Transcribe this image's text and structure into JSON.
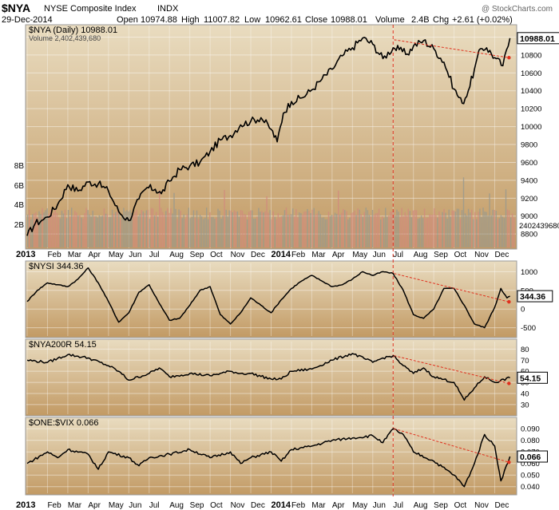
{
  "header": {
    "symbol": "$NYA",
    "name": "NYSE Composite Index",
    "exchange": "INDX",
    "date": "29-Dec-2014",
    "open_label": "Open",
    "open": "10974.88",
    "high_label": "High",
    "high": "11007.82",
    "low_label": "Low",
    "low": "10962.61",
    "close_label": "Close",
    "close": "10988.01",
    "volume_label": "Volume",
    "volume": "2.4B",
    "chg_label": "Chg",
    "chg": "+2.61 (+0.02%)",
    "watermark": "@ StockCharts.com"
  },
  "colors": {
    "panel_top": "#e9dcc0",
    "panel_bottom": "#c29a64",
    "line": "#000000",
    "dashed": "#e0301e",
    "vol_up": "#9a9a8e",
    "vol_down": "#d18b7e"
  },
  "chart_data": [
    {
      "type": "line",
      "title": "$NYA (Daily) 10988.01",
      "volume_label": "Volume 2,402,439,680",
      "last_value": "10988.01",
      "volume_last": "2402439680",
      "ylim": [
        8650,
        11120
      ],
      "yticks": [
        "11000",
        "10800",
        "10600",
        "10400",
        "10200",
        "10000",
        "9800",
        "9600",
        "9400",
        "9200",
        "9000",
        "8800"
      ],
      "volume_ticks": [
        "8B",
        "6B",
        "4B",
        "2B"
      ],
      "x_month": [
        0,
        0.4,
        0.8,
        1,
        1.5,
        2,
        2.5,
        3,
        3.5,
        4,
        4.5,
        5,
        5.5,
        5.9,
        6.3,
        6.6,
        7,
        7.5,
        8,
        8.5,
        9,
        9.5,
        10,
        10.5,
        11,
        11.5,
        12,
        12.3,
        12.6,
        13,
        13.5,
        14,
        14.5,
        15,
        15.5,
        16,
        16.5,
        17,
        17.5,
        18,
        18.3,
        18.7,
        19,
        19.5,
        20,
        20.5,
        21,
        21.4,
        21.7,
        22,
        22.3,
        22.6,
        23,
        23.4,
        23.75
      ],
      "values": [
        8780,
        8920,
        8960,
        8990,
        9130,
        9350,
        9280,
        9380,
        9360,
        9280,
        9050,
        8950,
        9190,
        9320,
        9300,
        9250,
        9390,
        9520,
        9560,
        9600,
        9720,
        9850,
        9900,
        10020,
        10060,
        10100,
        9970,
        9830,
        10150,
        10280,
        10320,
        10410,
        10530,
        10640,
        10790,
        10880,
        10990,
        10920,
        10760,
        10880,
        10860,
        10810,
        10900,
        10960,
        10870,
        10720,
        10420,
        10260,
        10400,
        10640,
        10870,
        10880,
        10770,
        10680,
        10988
      ],
      "trend_start": [
        18.05,
        10970
      ],
      "trend_end": [
        23.7,
        10770
      ]
    },
    {
      "type": "line",
      "title": "$NYSI 344.36",
      "last_value": "344.36",
      "ylim": [
        -700,
        1200
      ],
      "yticks": [
        "1000",
        "500",
        "0",
        "-500"
      ],
      "x_month": [
        0,
        0.5,
        1,
        1.5,
        2,
        2.5,
        3,
        3.5,
        4,
        4.5,
        5,
        5.5,
        6,
        6.5,
        7,
        7.5,
        8,
        8.5,
        9,
        9.5,
        10,
        10.5,
        11,
        11.5,
        12,
        12.5,
        13,
        13.5,
        14,
        14.5,
        15,
        15.5,
        16,
        16.5,
        17,
        17.5,
        18,
        18.5,
        19,
        19.5,
        20,
        20.5,
        21,
        21.5,
        22,
        22.5,
        23,
        23.3,
        23.6,
        23.75
      ],
      "values": [
        200,
        500,
        700,
        650,
        600,
        800,
        1100,
        700,
        200,
        -350,
        -100,
        450,
        650,
        150,
        -300,
        -250,
        100,
        500,
        600,
        -150,
        -400,
        -100,
        300,
        100,
        -100,
        250,
        550,
        750,
        900,
        750,
        600,
        650,
        800,
        1000,
        900,
        1000,
        950,
        500,
        -150,
        -250,
        0,
        550,
        550,
        100,
        -400,
        -500,
        50,
        550,
        300,
        344
      ]
    },
    {
      "type": "line",
      "title": "$NYA200R 54.15",
      "last_value": "54.15",
      "ylim": [
        22,
        86
      ],
      "yticks": [
        "80",
        "70",
        "60",
        "50",
        "40",
        "30"
      ],
      "x_month": [
        0,
        1,
        2,
        3,
        4,
        4.5,
        5,
        6,
        6.5,
        7,
        8,
        9,
        10,
        10.5,
        11,
        12,
        12.5,
        13,
        14,
        15,
        16,
        17,
        17.5,
        18,
        18.5,
        19,
        19.5,
        20,
        21,
        21.5,
        22,
        22.5,
        23,
        23.75
      ],
      "values": [
        70,
        68,
        75,
        72,
        65,
        60,
        52,
        58,
        63,
        55,
        58,
        56,
        60,
        58,
        58,
        53,
        53,
        60,
        62,
        70,
        76,
        68,
        72,
        74,
        65,
        58,
        63,
        55,
        50,
        34,
        45,
        55,
        50,
        54.15
      ]
    },
    {
      "type": "line",
      "title": "$ONE:$VIX 0.066",
      "last_value": "0.066",
      "ylim": [
        0.035,
        0.097
      ],
      "yticks": [
        "0.090",
        "0.080",
        "0.070",
        "0.060",
        "0.050",
        "0.040"
      ],
      "x_month": [
        0,
        1,
        1.5,
        2,
        3,
        3.5,
        4,
        5,
        5.5,
        6,
        7,
        8,
        9,
        10,
        10.5,
        11,
        12,
        12.5,
        13,
        14,
        15,
        16,
        17,
        17.5,
        18,
        18.5,
        19,
        20,
        21,
        21.5,
        22,
        22.5,
        23,
        23.3,
        23.75
      ],
      "values": [
        0.06,
        0.07,
        0.065,
        0.072,
        0.068,
        0.055,
        0.07,
        0.065,
        0.058,
        0.065,
        0.068,
        0.072,
        0.065,
        0.07,
        0.06,
        0.065,
        0.07,
        0.062,
        0.072,
        0.075,
        0.08,
        0.082,
        0.084,
        0.078,
        0.09,
        0.085,
        0.07,
        0.062,
        0.05,
        0.04,
        0.06,
        0.085,
        0.075,
        0.045,
        0.066
      ]
    }
  ],
  "x_axis": {
    "labels": [
      "2013",
      "Feb",
      "Mar",
      "Apr",
      "May",
      "Jun",
      "Jul",
      "Aug",
      "Sep",
      "Oct",
      "Nov",
      "Dec",
      "2014",
      "Feb",
      "Mar",
      "Apr",
      "May",
      "Jun",
      "Jul",
      "Aug",
      "Sep",
      "Oct",
      "Nov",
      "Dec"
    ]
  }
}
